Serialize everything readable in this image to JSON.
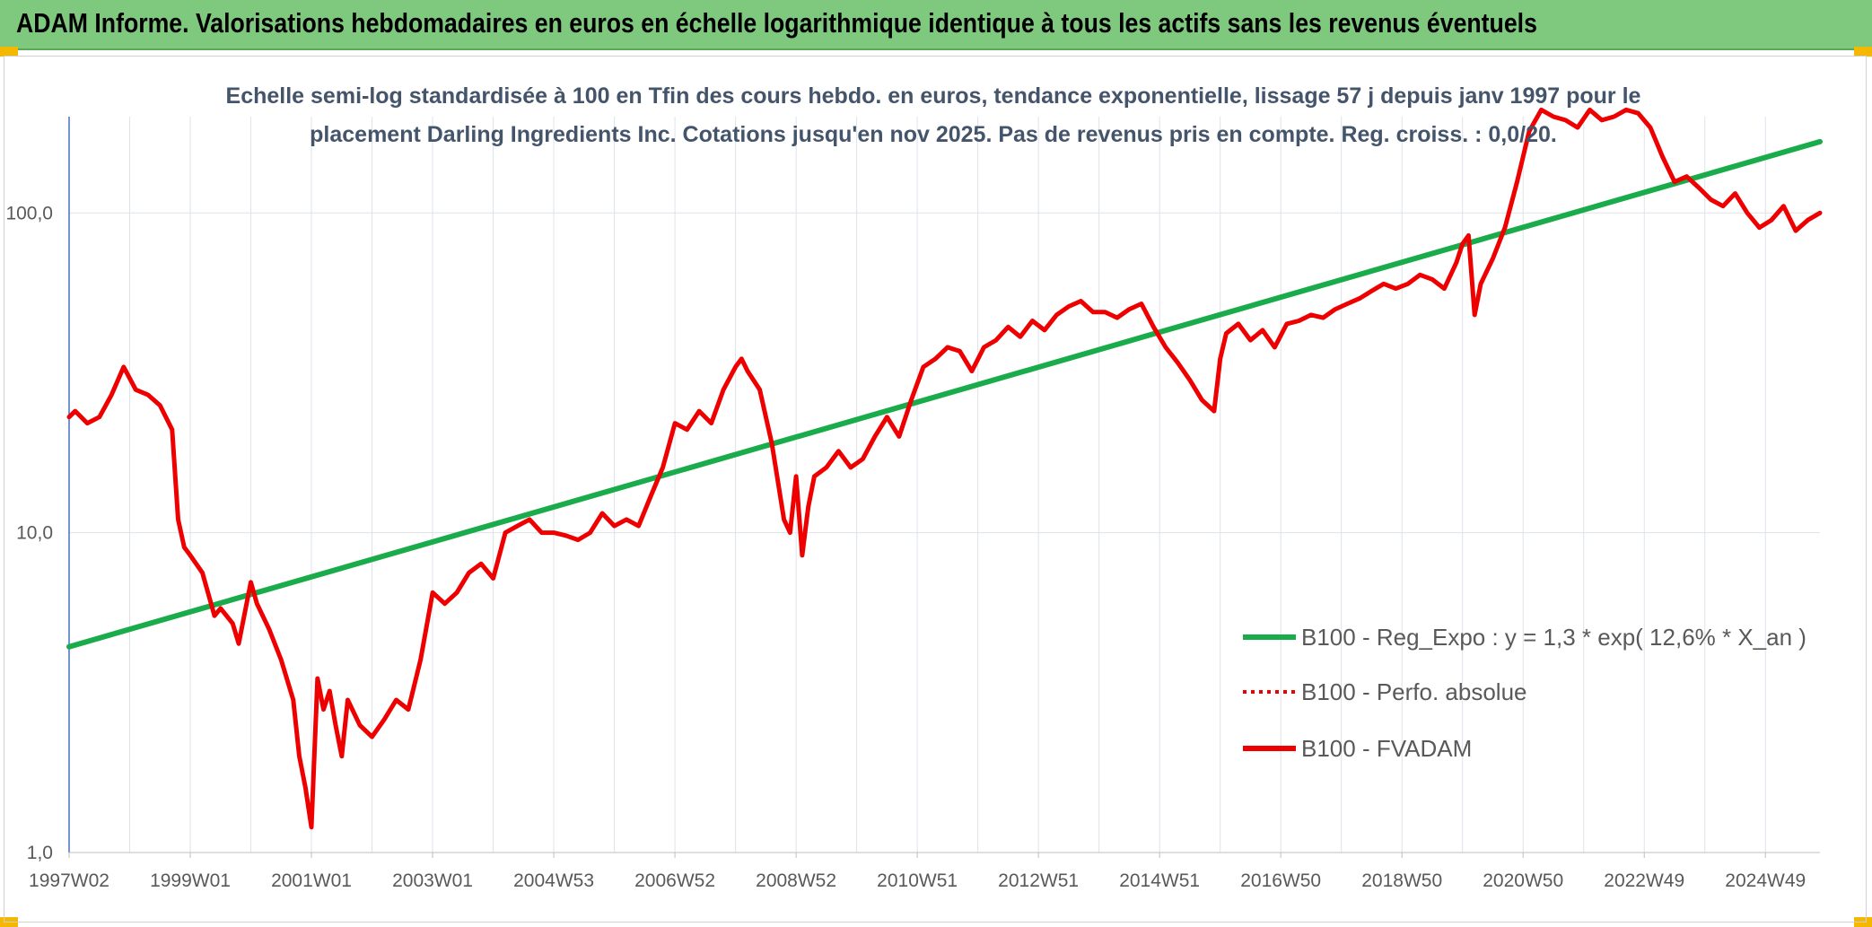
{
  "header": {
    "title": "ADAM Informe. Valorisations hebdomadaires en euros en échelle logarithmique identique à tous les actifs sans les revenus éventuels"
  },
  "colors": {
    "banner": "#7fc97f",
    "corner": "#f5b800",
    "trend_line": "#1aab4b",
    "fvadam_line": "#ee0000",
    "subtitle": "#44546a",
    "grid": "#dde3ea"
  },
  "chart_data": {
    "type": "line",
    "title": "Echelle semi-log standardisée à 100 en Tfin des cours hebdo. en euros, tendance exponentielle, lissage 57 j depuis janv 1997 pour le placement Darling Ingredients Inc. Cotations jusqu'en nov 2025. Pas de revenus pris en compte. Reg. croiss. : 0,0/20.",
    "title_lines": [
      "Echelle semi-log standardisée à 100 en Tfin des cours hebdo. en euros, tendance exponentielle, lissage 57 j depuis janv 1997 pour le",
      "placement Darling Ingredients Inc. Cotations jusqu'en nov 2025. Pas de revenus pris en compte. Reg. croiss. : 0,0/20."
    ],
    "yscale": "log",
    "ylim": [
      1,
      200
    ],
    "xlim": [
      1997.0,
      2025.9
    ],
    "grid": true,
    "legend_position": "right",
    "x_ticks": [
      {
        "label": "1997W02",
        "x": 1997.0
      },
      {
        "label": "1999W01",
        "x": 1999.0
      },
      {
        "label": "2001W01",
        "x": 2001.0
      },
      {
        "label": "2003W01",
        "x": 2003.0
      },
      {
        "label": "2004W53",
        "x": 2005.0
      },
      {
        "label": "2006W52",
        "x": 2007.0
      },
      {
        "label": "2008W52",
        "x": 2009.0
      },
      {
        "label": "2010W51",
        "x": 2011.0
      },
      {
        "label": "2012W51",
        "x": 2013.0
      },
      {
        "label": "2014W51",
        "x": 2015.0
      },
      {
        "label": "2016W50",
        "x": 2017.0
      },
      {
        "label": "2018W50",
        "x": 2019.0
      },
      {
        "label": "2020W50",
        "x": 2021.0
      },
      {
        "label": "2022W49",
        "x": 2023.0
      },
      {
        "label": "2024W49",
        "x": 2025.0
      }
    ],
    "y_ticks": [
      {
        "label": "1,0",
        "value": 1
      },
      {
        "label": "10,0",
        "value": 10
      },
      {
        "label": "100,0",
        "value": 100
      }
    ],
    "legend": [
      {
        "label": "B100 - Reg_Expo : y = 1,3 * exp( 12,6% *  X_an )",
        "style": "solid",
        "color": "#1aab4b"
      },
      {
        "label": "B100 - Perfo. absolue",
        "style": "dotted",
        "color": "#ee0000"
      },
      {
        "label": "B100 - FVADAM",
        "style": "solid",
        "color": "#ee0000"
      }
    ],
    "series": [
      {
        "name": "B100 - Reg_Expo : y = 1,3 * exp( 12,6% *  X_an )",
        "x": [
          1997.0,
          2025.9
        ],
        "y": [
          4.4,
          167
        ]
      },
      {
        "name": "B100 - FVADAM",
        "x": [
          1997.0,
          1997.1,
          1997.3,
          1997.5,
          1997.7,
          1997.9,
          1998.1,
          1998.3,
          1998.5,
          1998.7,
          1998.8,
          1998.9,
          1999.0,
          1999.2,
          1999.4,
          1999.5,
          1999.7,
          1999.8,
          2000.0,
          2000.1,
          2000.3,
          2000.5,
          2000.7,
          2000.8,
          2000.9,
          2001.0,
          2001.1,
          2001.2,
          2001.3,
          2001.4,
          2001.5,
          2001.6,
          2001.8,
          2002.0,
          2002.2,
          2002.4,
          2002.6,
          2002.8,
          2003.0,
          2003.2,
          2003.4,
          2003.6,
          2003.8,
          2004.0,
          2004.2,
          2004.4,
          2004.6,
          2004.8,
          2005.0,
          2005.2,
          2005.4,
          2005.6,
          2005.8,
          2006.0,
          2006.2,
          2006.4,
          2006.6,
          2006.8,
          2007.0,
          2007.2,
          2007.4,
          2007.6,
          2007.8,
          2008.0,
          2008.1,
          2008.2,
          2008.4,
          2008.6,
          2008.8,
          2008.9,
          2009.0,
          2009.1,
          2009.2,
          2009.3,
          2009.5,
          2009.7,
          2009.9,
          2010.1,
          2010.3,
          2010.5,
          2010.7,
          2010.9,
          2011.1,
          2011.3,
          2011.5,
          2011.7,
          2011.9,
          2012.1,
          2012.3,
          2012.5,
          2012.7,
          2012.9,
          2013.1,
          2013.3,
          2013.5,
          2013.7,
          2013.9,
          2014.1,
          2014.3,
          2014.5,
          2014.7,
          2014.9,
          2015.1,
          2015.3,
          2015.5,
          2015.7,
          2015.9,
          2016.0,
          2016.1,
          2016.3,
          2016.5,
          2016.7,
          2016.9,
          2017.1,
          2017.3,
          2017.5,
          2017.7,
          2017.9,
          2018.1,
          2018.3,
          2018.5,
          2018.7,
          2018.9,
          2019.1,
          2019.3,
          2019.5,
          2019.7,
          2019.9,
          2020.0,
          2020.1,
          2020.2,
          2020.3,
          2020.5,
          2020.7,
          2020.9,
          2021.1,
          2021.3,
          2021.5,
          2021.7,
          2021.9,
          2022.1,
          2022.3,
          2022.5,
          2022.7,
          2022.9,
          2023.1,
          2023.3,
          2023.5,
          2023.7,
          2023.9,
          2024.1,
          2024.3,
          2024.5,
          2024.7,
          2024.9,
          2025.1,
          2025.3,
          2025.5,
          2025.7,
          2025.9
        ],
        "y": [
          23,
          24,
          22,
          23,
          27,
          33,
          28,
          27,
          25,
          21,
          11,
          9,
          8.5,
          7.5,
          5.5,
          5.8,
          5.2,
          4.5,
          7,
          6,
          5,
          4,
          3,
          2,
          1.6,
          1.2,
          3.5,
          2.8,
          3.2,
          2.5,
          2,
          3,
          2.5,
          2.3,
          2.6,
          3,
          2.8,
          4,
          6.5,
          6,
          6.5,
          7.5,
          8,
          7.2,
          10,
          10.5,
          11,
          10,
          10,
          9.8,
          9.5,
          10,
          11.5,
          10.5,
          11,
          10.5,
          13,
          16,
          22,
          21,
          24,
          22,
          28,
          33,
          35,
          32,
          28,
          19,
          11,
          10,
          15,
          8.5,
          12,
          15,
          16,
          18,
          16,
          17,
          20,
          23,
          20,
          26,
          33,
          35,
          38,
          37,
          32,
          38,
          40,
          44,
          41,
          46,
          43,
          48,
          51,
          53,
          49,
          49,
          47,
          50,
          52,
          44,
          38,
          34,
          30,
          26,
          24,
          35,
          42,
          45,
          40,
          43,
          38,
          45,
          46,
          48,
          47,
          50,
          52,
          54,
          57,
          60,
          58,
          60,
          64,
          62,
          58,
          70,
          80,
          85,
          48,
          60,
          72,
          90,
          125,
          180,
          210,
          200,
          195,
          185,
          210,
          195,
          200,
          210,
          205,
          185,
          150,
          125,
          130,
          120,
          110,
          105,
          115,
          100,
          90,
          95,
          105,
          88,
          95,
          100
        ]
      }
    ]
  }
}
